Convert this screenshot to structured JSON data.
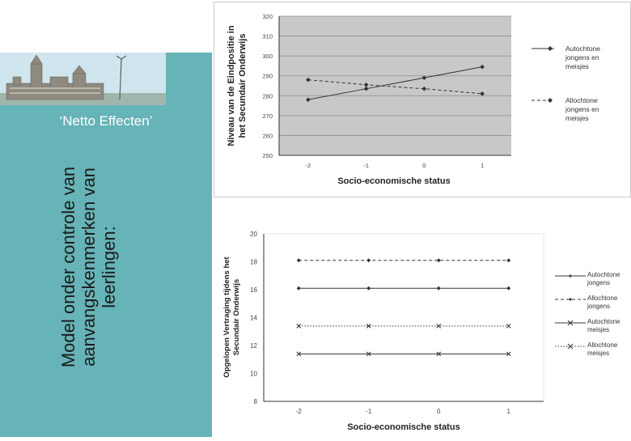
{
  "slide": {
    "subtitle": "‘Netto Effecten’",
    "vertical_title_lines": [
      "Model onder controle van",
      "aanvangskenmerken van",
      "leerlingen:"
    ],
    "colors": {
      "teal": "#66b3b8",
      "sky": "#cfe6ee"
    }
  },
  "chart_data": [
    {
      "type": "line",
      "title": "",
      "xlabel": "Socio-economische status",
      "ylabel_lines": [
        "Niveau van de Eindpositie in",
        "het Secundair Onderwijs"
      ],
      "x": [
        -2,
        -1,
        0,
        1
      ],
      "x_ticks": [
        "-2",
        "-1",
        "0",
        "1"
      ],
      "ylim": [
        250,
        320
      ],
      "y_ticks": [
        "250",
        "260",
        "270",
        "280",
        "290",
        "300",
        "310",
        "320"
      ],
      "grid": true,
      "legend_position": "right",
      "series": [
        {
          "name": "Autochtone jongens en meisjes",
          "legend_lines": [
            "Autochtone",
            "jongens en",
            "meisjes"
          ],
          "values": [
            278,
            283.5,
            289,
            294.5
          ],
          "style": "solid",
          "marker": "diamond"
        },
        {
          "name": "Allochtone jongens en meisjes",
          "legend_lines": [
            "Allochtone",
            "jongens en",
            "meisjes"
          ],
          "values": [
            288,
            285.5,
            283.5,
            281
          ],
          "style": "dashed",
          "marker": "diamond"
        }
      ]
    },
    {
      "type": "line",
      "title": "",
      "xlabel": "Socio-economische status",
      "ylabel_lines": [
        "Opgelopen Vertraging tijdens het",
        "Secundair Onderwijs"
      ],
      "x": [
        -2,
        -1,
        0,
        1
      ],
      "x_ticks": [
        "-2",
        "-1",
        "0",
        "1"
      ],
      "ylim": [
        8,
        20
      ],
      "y_ticks": [
        "8",
        "10",
        "12",
        "14",
        "16",
        "18",
        "20"
      ],
      "grid": false,
      "legend_position": "right",
      "series": [
        {
          "name": "Autochtone jongens",
          "legend_lines": [
            "Autochtone",
            "jongens"
          ],
          "values": [
            16.1,
            16.1,
            16.1,
            16.1
          ],
          "style": "solid",
          "marker": "diamond"
        },
        {
          "name": "Allochtone jongens",
          "legend_lines": [
            "Allochtone",
            "jongens"
          ],
          "values": [
            18.1,
            18.1,
            18.1,
            18.1
          ],
          "style": "dashed",
          "marker": "diamond"
        },
        {
          "name": "Autochtone meisjes",
          "legend_lines": [
            "Autochtone",
            "meisjes"
          ],
          "values": [
            11.4,
            11.4,
            11.4,
            11.4
          ],
          "style": "solid",
          "marker": "x"
        },
        {
          "name": "Allochtone meisjes",
          "legend_lines": [
            "Allochtone",
            "meisjes"
          ],
          "values": [
            13.4,
            13.4,
            13.4,
            13.4
          ],
          "style": "dotted",
          "marker": "x"
        }
      ]
    }
  ]
}
